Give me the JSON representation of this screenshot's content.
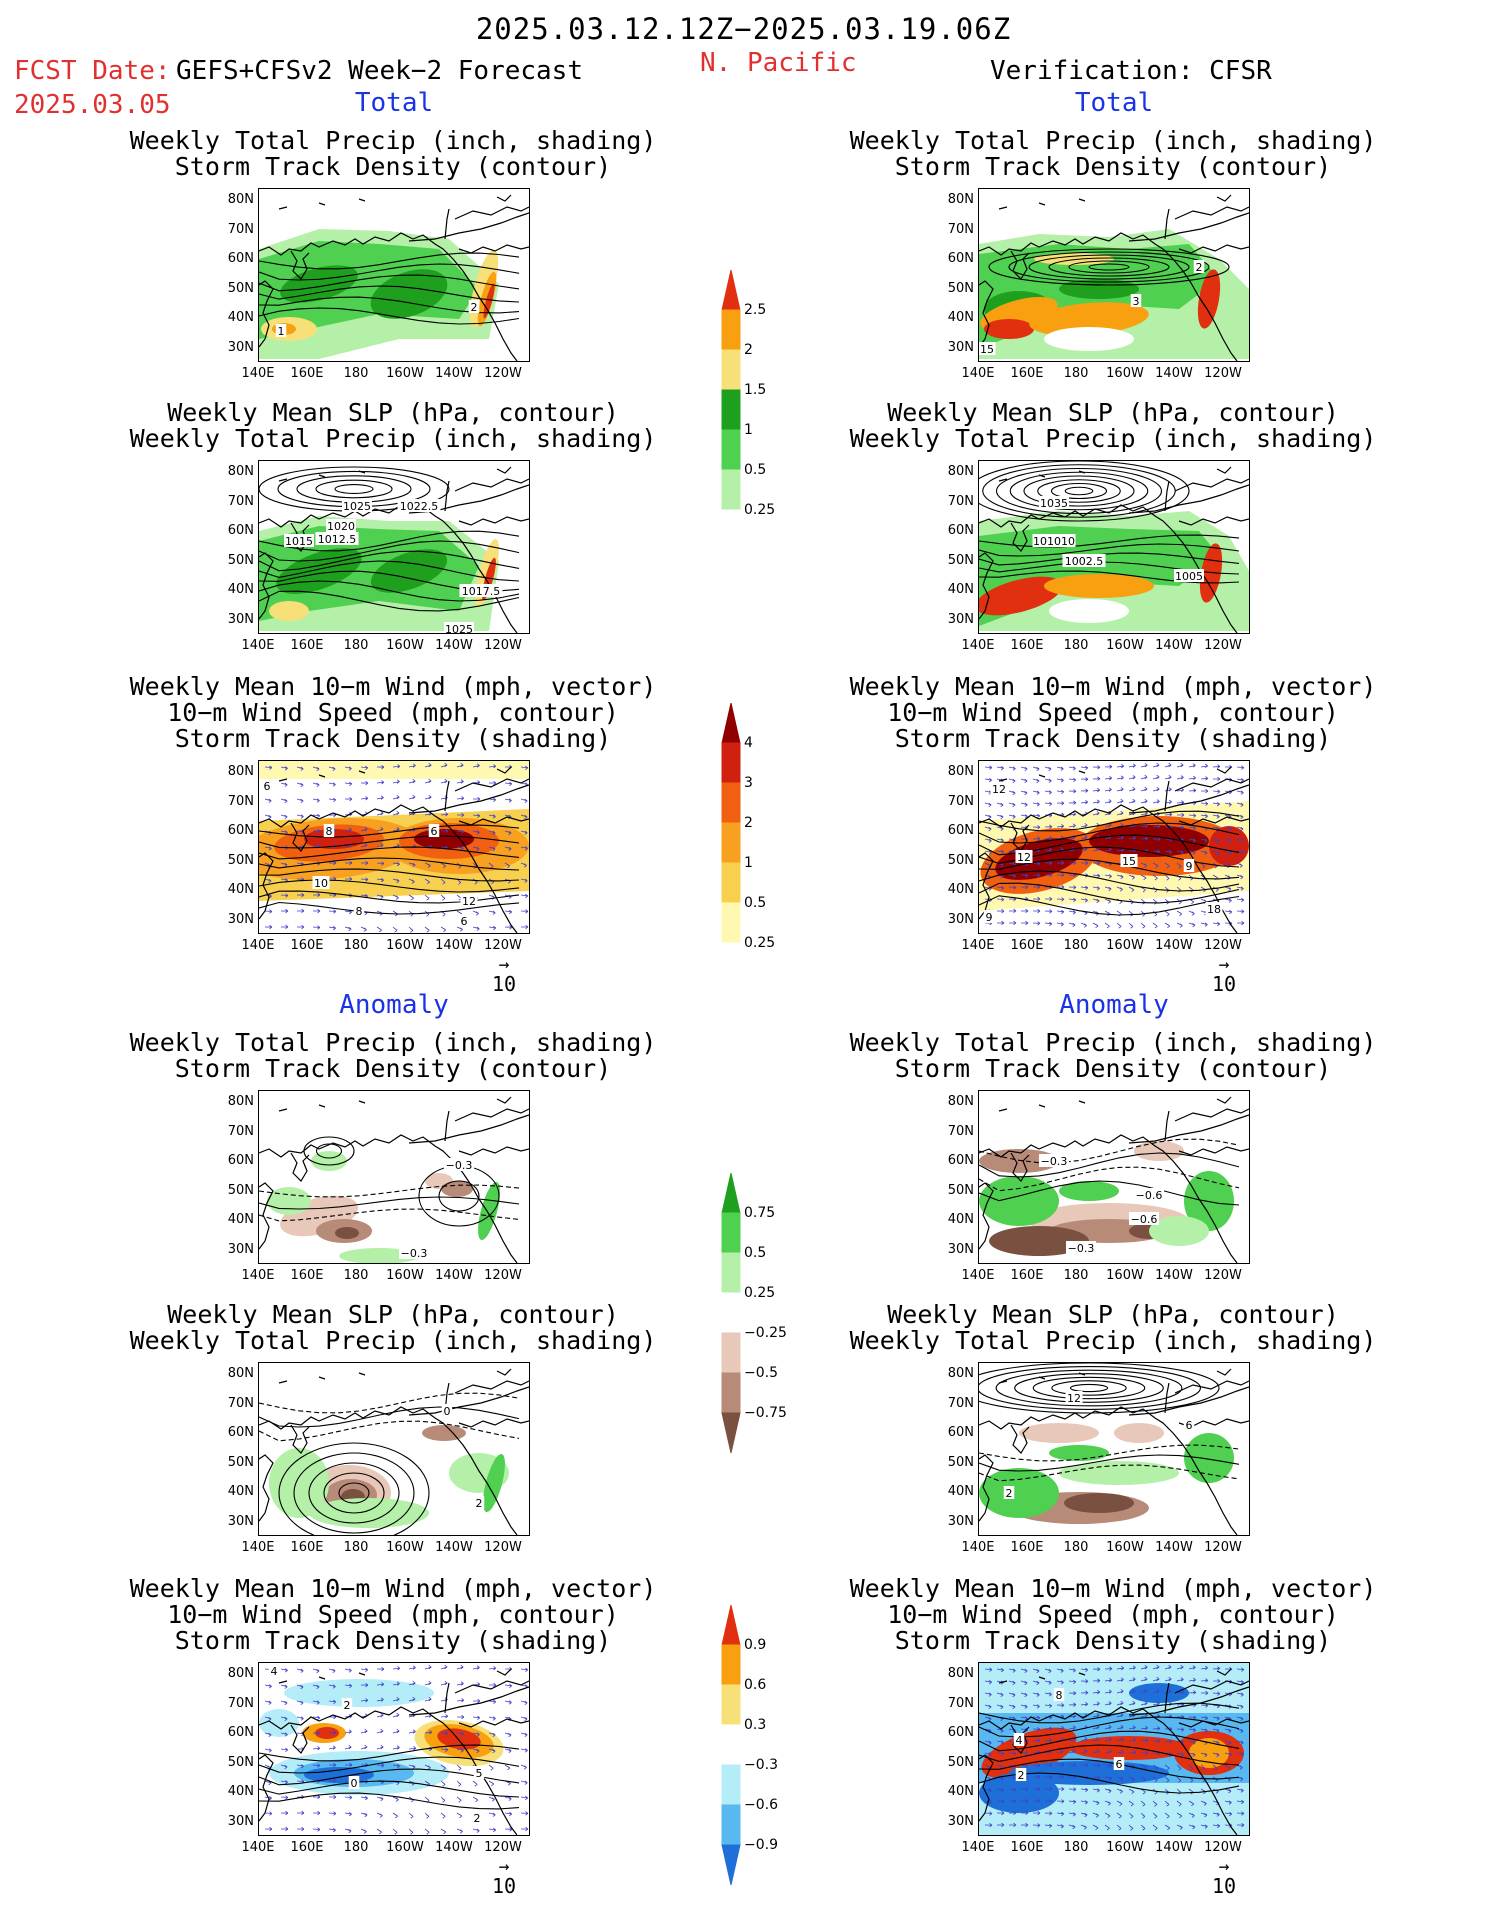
{
  "header": {
    "period": "2025.03.12.12Z−2025.03.19.06Z",
    "fcst_label": "FCST Date:",
    "fcst_model": "GEFS+CFSv2 Week−2 Forecast",
    "fcst_date": "2025.03.05",
    "region": "N. Pacific",
    "verification": "Verification: CFSR"
  },
  "sections": {
    "total": "Total",
    "anomaly": "Anomaly"
  },
  "titles": {
    "precip_track": [
      "Weekly Total Precip (inch, shading)",
      "Storm Track Density (contour)"
    ],
    "slp_precip": [
      "Weekly Mean SLP (hPa, contour)",
      "Weekly Total Precip (inch, shading)"
    ],
    "wind_track": [
      "Weekly Mean 10−m Wind (mph, vector)",
      "10−m Wind Speed (mph, contour)",
      "Storm Track Density (shading)"
    ]
  },
  "axes": {
    "lat_ticks": [
      "80N",
      "70N",
      "60N",
      "50N",
      "40N",
      "30N"
    ],
    "lon_ticks": [
      "140E",
      "160E",
      "180",
      "160W",
      "140W",
      "120W"
    ]
  },
  "vector_reference": "10",
  "colorbars": {
    "precip_total": [
      "2.5",
      "2",
      "1.5",
      "1",
      "0.5",
      "0.25"
    ],
    "track_total": [
      "4",
      "3",
      "2",
      "1",
      "0.5",
      "0.25"
    ],
    "precip_anom": [
      "0.75",
      "0.5",
      "0.25",
      "−0.25",
      "−0.5",
      "−0.75"
    ],
    "track_anom": [
      "0.9",
      "0.6",
      "0.3",
      "−0.3",
      "−0.6",
      "−0.9"
    ]
  },
  "colors": {
    "title_red": "#e03030",
    "section_blue": "#1a33e6",
    "precip": [
      "#b4f0a8",
      "#50d050",
      "#1ea01e",
      "#f8e078",
      "#f8a010",
      "#e03010"
    ],
    "track": [
      "#fff8b0",
      "#f8d050",
      "#f8a020",
      "#f06010",
      "#d02010",
      "#900000"
    ],
    "precip_anom_pos": [
      "#b4f0a8",
      "#50d050",
      "#1ea01e"
    ],
    "precip_anom_neg": [
      "#e8c8b8",
      "#b88a78",
      "#7a5040"
    ],
    "track_anom_pos": [
      "#f8e078",
      "#f8a010",
      "#e03010"
    ],
    "track_anom_neg": [
      "#b4ecf8",
      "#58b8f0",
      "#1e70d8"
    ]
  },
  "panels": {
    "fc_precip_track": {
      "labels": [
        "1",
        "2"
      ]
    },
    "fc_slp_precip": {
      "labels": [
        "1025",
        "1022.5",
        "1020",
        "1015",
        "1012.5",
        "1017.5",
        "1025"
      ]
    },
    "fc_wind_track": {
      "labels": [
        "6",
        "8",
        "6",
        "10",
        "12",
        "8",
        "6"
      ]
    },
    "ob_precip_track": {
      "labels": [
        "2",
        "3",
        "15"
      ]
    },
    "ob_slp_precip": {
      "labels": [
        "1035",
        "101010",
        "1002.5",
        "1005"
      ]
    },
    "ob_wind_track": {
      "labels": [
        "12",
        "12",
        "15",
        "9",
        "18",
        "9"
      ]
    },
    "fa_precip_track": {
      "labels": [
        "−0.3",
        "−0.3"
      ]
    },
    "fa_slp_precip": {
      "labels": [
        "0",
        "2"
      ]
    },
    "fa_wind_track": {
      "labels": [
        "4",
        "2",
        "0",
        "5",
        "2"
      ]
    },
    "oa_precip_track": {
      "labels": [
        "−0.3",
        "−0.6",
        "−0.6",
        "−0.3"
      ]
    },
    "oa_slp_precip": {
      "labels": [
        "12",
        "6",
        "2"
      ]
    },
    "oa_wind_track": {
      "labels": [
        "8",
        "4",
        "2",
        "6"
      ]
    }
  }
}
